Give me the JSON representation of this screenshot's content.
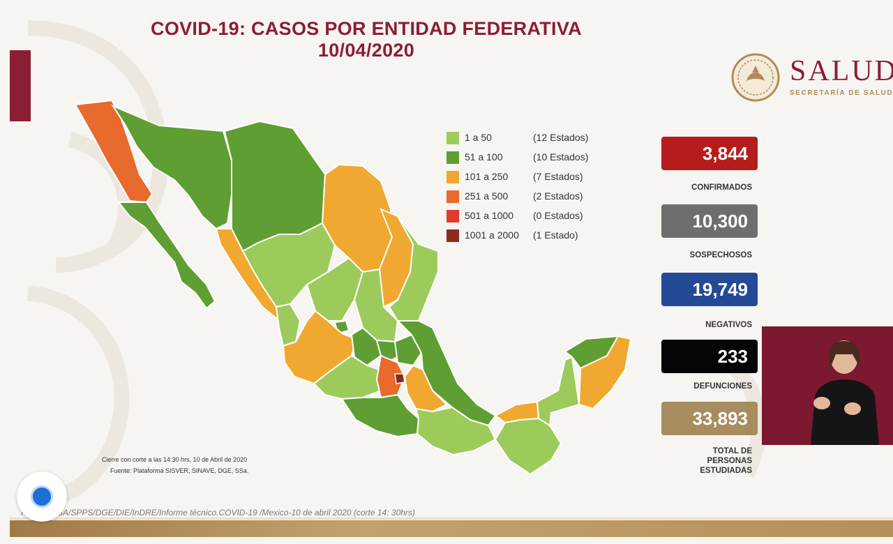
{
  "title": {
    "line1": "COVID-19: CASOS POR ENTIDAD FEDERATIVA",
    "line2": "10/04/2020"
  },
  "logo": {
    "brand": "SALUD",
    "subtitle": "SECRETARÍA DE SALUD"
  },
  "legend": [
    {
      "range": "1 a 50",
      "count": "(12 Estados)",
      "color": "#9ccb5b"
    },
    {
      "range": "51 a 100",
      "count": "(10 Estados)",
      "color": "#5f9e32"
    },
    {
      "range": "101 a 250",
      "count": "(7 Estados)",
      "color": "#f0a830"
    },
    {
      "range": "251 a 500",
      "count": "(2 Estados)",
      "color": "#e86a2c"
    },
    {
      "range": "501 a 1000",
      "count": "(0 Estados)",
      "color": "#e03a2a"
    },
    {
      "range": "1001 a 2000",
      "count": "(1 Estado)",
      "color": "#8e2a1e"
    }
  ],
  "stats": [
    {
      "value": "3,844",
      "label": "CONFIRMADOS",
      "color": "#b71c1c"
    },
    {
      "value": "10,300",
      "label": "SOSPECHOSOS",
      "color": "#6e6e6e"
    },
    {
      "value": "19,749",
      "label": "NEGATIVOS",
      "color": "#244a96"
    },
    {
      "value": "233",
      "label": "DEFUNCIONES",
      "color": "#050505"
    },
    {
      "value": "33,893",
      "label_lines": [
        "TOTAL DE",
        "PERSONAS",
        "ESTUDIADAS"
      ],
      "color": "#a88c5f"
    }
  ],
  "notes": {
    "cut": "Cierre con corte a las 14:30 hrs, 10 de Abril de 2020",
    "source": "Fuente: Plataforma SISVER, SINAVE, DGE, SSa."
  },
  "footer": {
    "source": "Fuente: SSA/SPPS/DGE/DIE/InDRE/Informe técnico.COVID-19 /Mexico-10 de abril 2020 (corte 14: 30hrs)"
  },
  "icons": {
    "seal": "national-seal-icon",
    "record": "record-button-icon"
  }
}
